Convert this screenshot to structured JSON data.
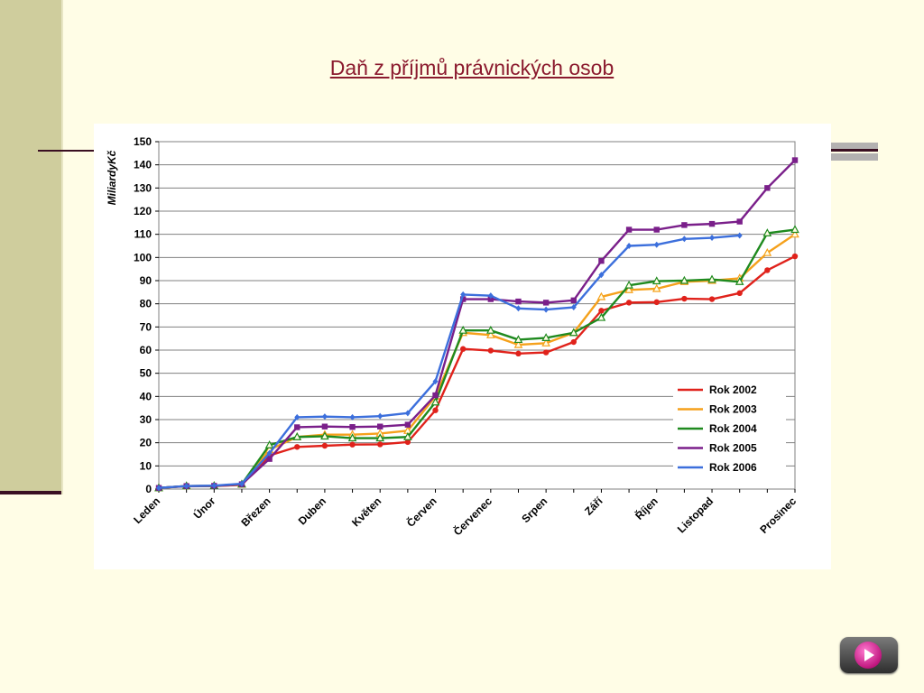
{
  "slide": {
    "title": "Daň z příjmů právnických osob"
  },
  "nav": {
    "play_icon": "play-icon"
  },
  "colors": {
    "background": "#fffde6",
    "sidebar": "#cfcd9d",
    "title": "#8b1a2e",
    "grid": "#808080"
  },
  "chart_data": {
    "type": "line",
    "ylabel": "MiliardyKč",
    "ylim": [
      0,
      150
    ],
    "yticks": [
      0,
      10,
      20,
      30,
      40,
      50,
      60,
      70,
      80,
      90,
      100,
      110,
      120,
      130,
      140,
      150
    ],
    "x_labels": [
      "Leden",
      "Únor",
      "Březen",
      "Duben",
      "Květen",
      "Červen",
      "Červenec",
      "Srpen",
      "Září",
      "Říjen",
      "Listopad",
      "Prosinec"
    ],
    "x_label_positions": [
      0,
      2,
      4,
      6,
      8,
      10,
      12,
      14,
      16,
      18,
      20,
      23
    ],
    "x_count": 24,
    "grid": true,
    "legend_position": "lower-right",
    "series": [
      {
        "name": "Rok 2002",
        "color": "#e0221b",
        "marker": "circle",
        "values": [
          0.5,
          1.2,
          1.3,
          1.8,
          14.5,
          18.2,
          18.7,
          19.2,
          19.3,
          20.3,
          34,
          60.5,
          59.8,
          58.5,
          59,
          63.5,
          77,
          80.5,
          80.7,
          82.2,
          82,
          84.6,
          94.5,
          100.5
        ]
      },
      {
        "name": "Rok 2003",
        "color": "#f5a11c",
        "marker": "triangle",
        "values": [
          0.5,
          1.3,
          1.4,
          2,
          17,
          22.5,
          23.5,
          23.5,
          24,
          25.2,
          40,
          67.5,
          66.5,
          62.3,
          63,
          67.5,
          83,
          86,
          86.5,
          89.5,
          90,
          91,
          102,
          110
        ]
      },
      {
        "name": "Rok 2004",
        "color": "#1f8a1f",
        "marker": "triangle",
        "values": [
          0.5,
          1.3,
          1.4,
          2.1,
          19,
          22.5,
          22.8,
          22,
          22,
          22.5,
          37.5,
          68.5,
          68.5,
          64.5,
          65.3,
          67.5,
          74,
          88,
          89.8,
          90,
          90.5,
          89.5,
          110.5,
          112
        ]
      },
      {
        "name": "Rok 2005",
        "color": "#7a1f8a",
        "marker": "square",
        "values": [
          0.5,
          1.3,
          1.4,
          2.1,
          13,
          26.7,
          27,
          26.8,
          27,
          27.8,
          40.5,
          82,
          82,
          81,
          80.5,
          81.5,
          98.5,
          112,
          112,
          114,
          114.5,
          115.5,
          130,
          142
        ]
      },
      {
        "name": "Rok 2006",
        "color": "#3c6fdc",
        "marker": "diamond",
        "values": [
          0.5,
          1.3,
          1.5,
          2.3,
          15.5,
          31,
          31.3,
          31,
          31.5,
          32.8,
          46.5,
          84,
          83.5,
          78,
          77.5,
          78.5,
          92.5,
          105,
          105.5,
          108,
          108.5,
          109.5,
          null,
          null
        ]
      }
    ]
  }
}
